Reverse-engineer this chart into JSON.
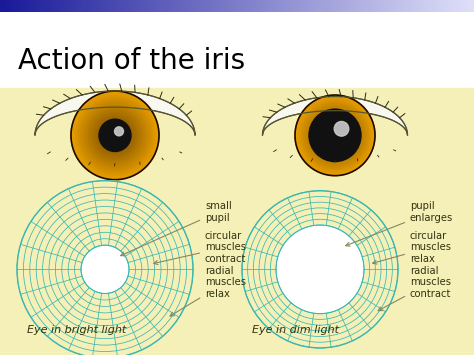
{
  "title": "Action of the iris",
  "title_fontsize": 20,
  "bg_white": "#ffffff",
  "bg_yellow": "#f5f0b8",
  "iris_outer_color": "#e8a000",
  "iris_inner_color": "#c06000",
  "pupil_color": "#111111",
  "sclera_color": "#f8f8f0",
  "diagram_color": "#3ab8b0",
  "text_color": "#333311",
  "annotation_color": "#888860",
  "left_eye_label": "Eye in bright light",
  "right_eye_label": "Eye in dim light",
  "left_labels": [
    "small\npupil",
    "circular\nmuscles\ncontract",
    "radial\nmuscles\nrelax"
  ],
  "right_labels": [
    "pupil\nenlarges",
    "circular\nmuscles\nrelax",
    "radial\nmuscles\ncontract"
  ],
  "header_left_color": "#1a1a99",
  "header_right_color": "#ccccee"
}
